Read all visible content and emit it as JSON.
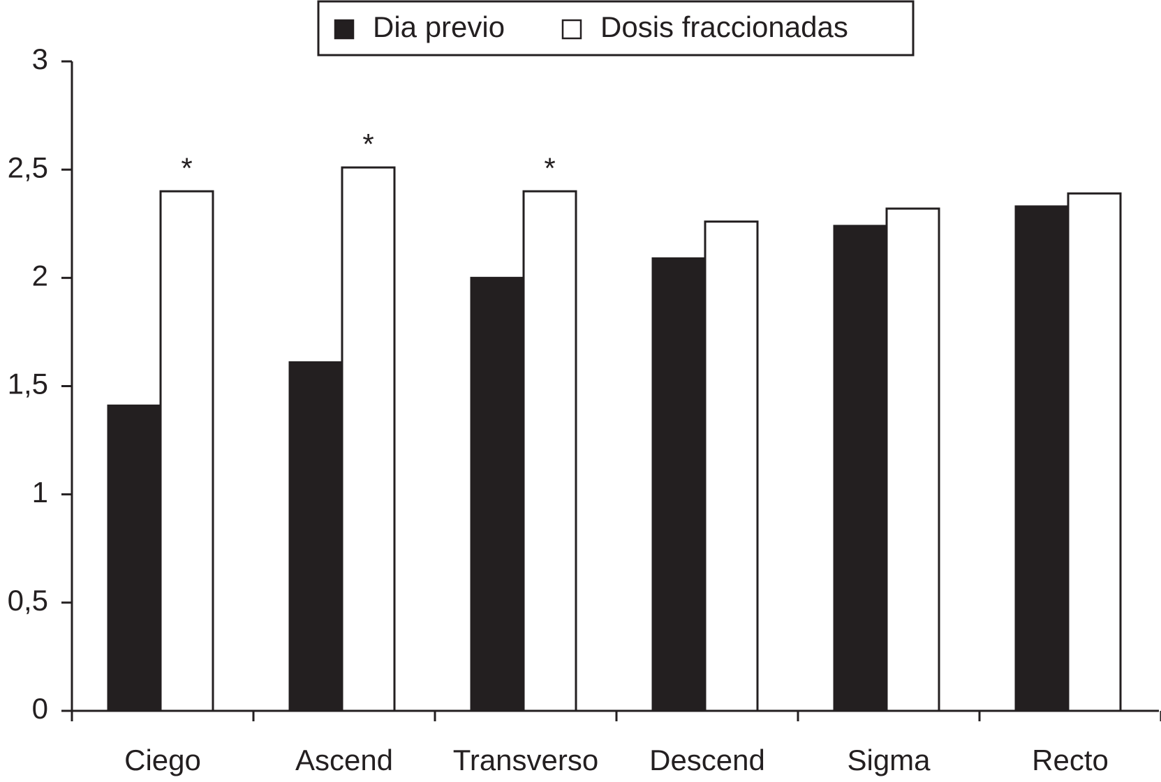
{
  "chart_data": {
    "type": "bar",
    "categories": [
      "Ciego",
      "Ascend",
      "Transverso",
      "Descend",
      "Sigma",
      "Recto"
    ],
    "series": [
      {
        "name": "Dia previo",
        "color": "#231f20",
        "values": [
          1.41,
          1.61,
          2.0,
          2.09,
          2.24,
          2.33
        ]
      },
      {
        "name": "Dosis fraccionadas",
        "color": "#ffffff",
        "values": [
          2.4,
          2.51,
          2.4,
          2.26,
          2.32,
          2.39
        ]
      }
    ],
    "ylim": [
      0,
      3
    ],
    "yticks": [
      0,
      {
        "value": 0.5,
        "label": "0,5"
      },
      1,
      {
        "value": 1.5,
        "label": "1,5"
      },
      2,
      {
        "value": 2.5,
        "label": "2,5"
      },
      3
    ],
    "grid": false,
    "legend": "top",
    "annotations": [
      {
        "text": "*",
        "category": "Ciego",
        "series": "Dosis fraccionadas"
      },
      {
        "text": "*",
        "category": "Ascend",
        "series": "Dosis fraccionadas"
      },
      {
        "text": "*",
        "category": "Transverso",
        "series": "Dosis fraccionadas"
      }
    ]
  }
}
